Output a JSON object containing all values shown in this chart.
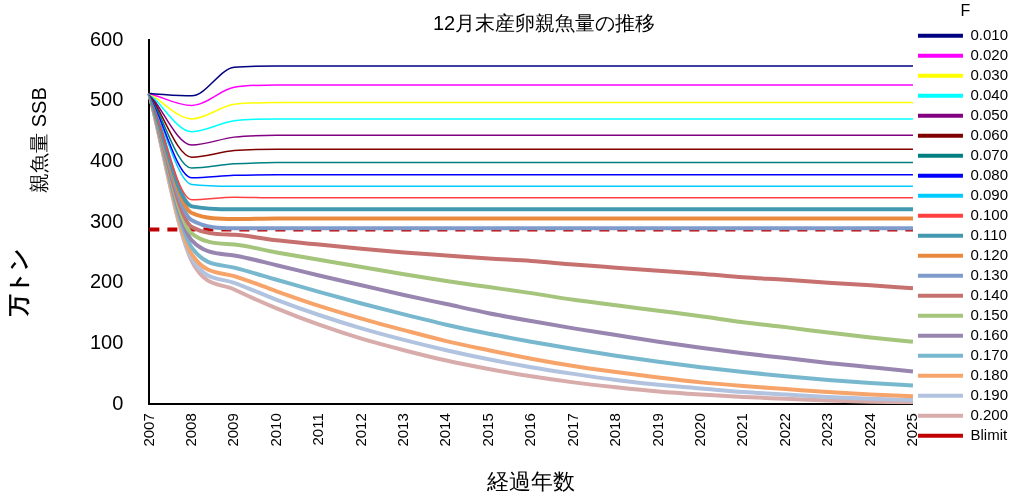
{
  "chart_data": {
    "type": "line",
    "title": "12月末産卵親魚量の推移",
    "xlabel": "経過年数",
    "ylabel": "親魚量 SSB",
    "annotations": [
      "万トン"
    ],
    "legend_title": "F",
    "legend": "right",
    "grid": false,
    "marker": "none",
    "line_style": "solid",
    "categories": [
      "2007",
      "2008",
      "2009",
      "2010",
      "2011",
      "2012",
      "2013",
      "2014",
      "2015",
      "2016",
      "2017",
      "2018",
      "2019",
      "2020",
      "2021",
      "2022",
      "2023",
      "2024",
      "2025"
    ],
    "ylim": [
      0,
      600
    ],
    "yticks": [
      0,
      100,
      200,
      300,
      400,
      500,
      600
    ],
    "series": [
      {
        "name": "0.010",
        "color": "#000080",
        "values": [
          512,
          508,
          555,
          557,
          557,
          557,
          557,
          557,
          557,
          557,
          557,
          557,
          557,
          557,
          557,
          557,
          557,
          557,
          557
        ]
      },
      {
        "name": "0.020",
        "color": "#ff00ff",
        "values": [
          512,
          492,
          522,
          526,
          526,
          526,
          526,
          526,
          526,
          526,
          526,
          526,
          526,
          526,
          526,
          526,
          526,
          526,
          526
        ]
      },
      {
        "name": "0.030",
        "color": "#ffff00",
        "values": [
          512,
          470,
          494,
          497,
          497,
          497,
          497,
          497,
          497,
          497,
          497,
          497,
          497,
          497,
          497,
          497,
          497,
          497,
          497
        ]
      },
      {
        "name": "0.040",
        "color": "#00ffff",
        "values": [
          512,
          449,
          467,
          470,
          470,
          470,
          470,
          470,
          470,
          470,
          470,
          470,
          470,
          470,
          470,
          470,
          470,
          470,
          470
        ]
      },
      {
        "name": "0.050",
        "color": "#800080",
        "values": [
          512,
          427,
          440,
          443,
          443,
          443,
          443,
          443,
          443,
          443,
          443,
          443,
          443,
          443,
          443,
          443,
          443,
          443,
          443
        ]
      },
      {
        "name": "0.060",
        "color": "#800000",
        "values": [
          512,
          407,
          418,
          420,
          420,
          420,
          420,
          420,
          420,
          420,
          420,
          420,
          420,
          420,
          420,
          420,
          420,
          420,
          420
        ]
      },
      {
        "name": "0.070",
        "color": "#008080",
        "values": [
          512,
          389,
          396,
          398,
          398,
          398,
          398,
          398,
          398,
          398,
          398,
          398,
          398,
          398,
          398,
          398,
          398,
          398,
          398
        ]
      },
      {
        "name": "0.080",
        "color": "#0000ff",
        "values": [
          512,
          373,
          377,
          378,
          378,
          378,
          378,
          378,
          378,
          378,
          378,
          378,
          378,
          378,
          378,
          378,
          378,
          378,
          378
        ]
      },
      {
        "name": "0.090",
        "color": "#00ccff",
        "values": [
          512,
          362,
          359,
          359,
          359,
          359,
          359,
          359,
          359,
          359,
          359,
          359,
          359,
          359,
          359,
          359,
          359,
          359,
          359
        ]
      },
      {
        "name": "0.100",
        "color": "#ff4040",
        "values": [
          512,
          337,
          341,
          340,
          340,
          340,
          340,
          340,
          340,
          340,
          340,
          340,
          340,
          340,
          340,
          340,
          340,
          340,
          340
        ]
      },
      {
        "name": "0.110",
        "color": "#4198af",
        "values": [
          512,
          326,
          321,
          321,
          321,
          321,
          321,
          321,
          321,
          321,
          321,
          321,
          321,
          321,
          321,
          321,
          321,
          321,
          321
        ]
      },
      {
        "name": "0.120",
        "color": "#e8893e",
        "values": [
          512,
          315,
          305,
          306,
          306,
          306,
          306,
          306,
          306,
          306,
          306,
          306,
          306,
          306,
          306,
          306,
          306,
          306,
          306
        ]
      },
      {
        "name": "0.130",
        "color": "#7e9bcb",
        "values": [
          512,
          303,
          290,
          290,
          290,
          290,
          290,
          290,
          290,
          290,
          290,
          290,
          290,
          290,
          290,
          290,
          290,
          290,
          290
        ]
      },
      {
        "name": "0.140",
        "color": "#c6716f",
        "values": [
          512,
          292,
          279,
          270,
          263,
          256,
          250,
          245,
          240,
          236,
          230,
          225,
          220,
          215,
          209,
          205,
          200,
          196,
          191
        ]
      },
      {
        "name": "0.150",
        "color": "#a5c47c",
        "values": [
          512,
          281,
          263,
          250,
          238,
          226,
          214,
          203,
          193,
          183,
          172,
          163,
          154,
          145,
          135,
          127,
          118,
          110,
          103
        ]
      },
      {
        "name": "0.160",
        "color": "#9886b1",
        "values": [
          512,
          270,
          245,
          229,
          212,
          196,
          180,
          165,
          150,
          137,
          125,
          114,
          103,
          93,
          84,
          76,
          68,
          61,
          54
        ]
      },
      {
        "name": "0.170",
        "color": "#78b8ce",
        "values": [
          512,
          258,
          225,
          205,
          185,
          166,
          148,
          131,
          116,
          103,
          91,
          80,
          70,
          61,
          53,
          46,
          40,
          35,
          31
        ]
      },
      {
        "name": "0.180",
        "color": "#f7a46b",
        "values": [
          512,
          247,
          211,
          186,
          162,
          141,
          122,
          104,
          89,
          75,
          63,
          53,
          44,
          36,
          30,
          25,
          20,
          16,
          13
        ]
      },
      {
        "name": "0.190",
        "color": "#b1c3df",
        "values": [
          512,
          240,
          200,
          172,
          147,
          125,
          106,
          89,
          74,
          61,
          50,
          40,
          32,
          26,
          20,
          16,
          12,
          9,
          7
        ]
      },
      {
        "name": "0.200",
        "color": "#d8acab",
        "values": [
          512,
          236,
          189,
          158,
          131,
          108,
          89,
          72,
          58,
          46,
          36,
          28,
          21,
          16,
          12,
          9,
          6,
          4,
          3
        ]
      },
      {
        "name": "Blimit",
        "color": "#c00000",
        "line_style": "dashed",
        "values": [
          288,
          288,
          288,
          288,
          288,
          288,
          288,
          288,
          288,
          288,
          288,
          288,
          288,
          288,
          288,
          288,
          288,
          288,
          288
        ]
      }
    ]
  }
}
